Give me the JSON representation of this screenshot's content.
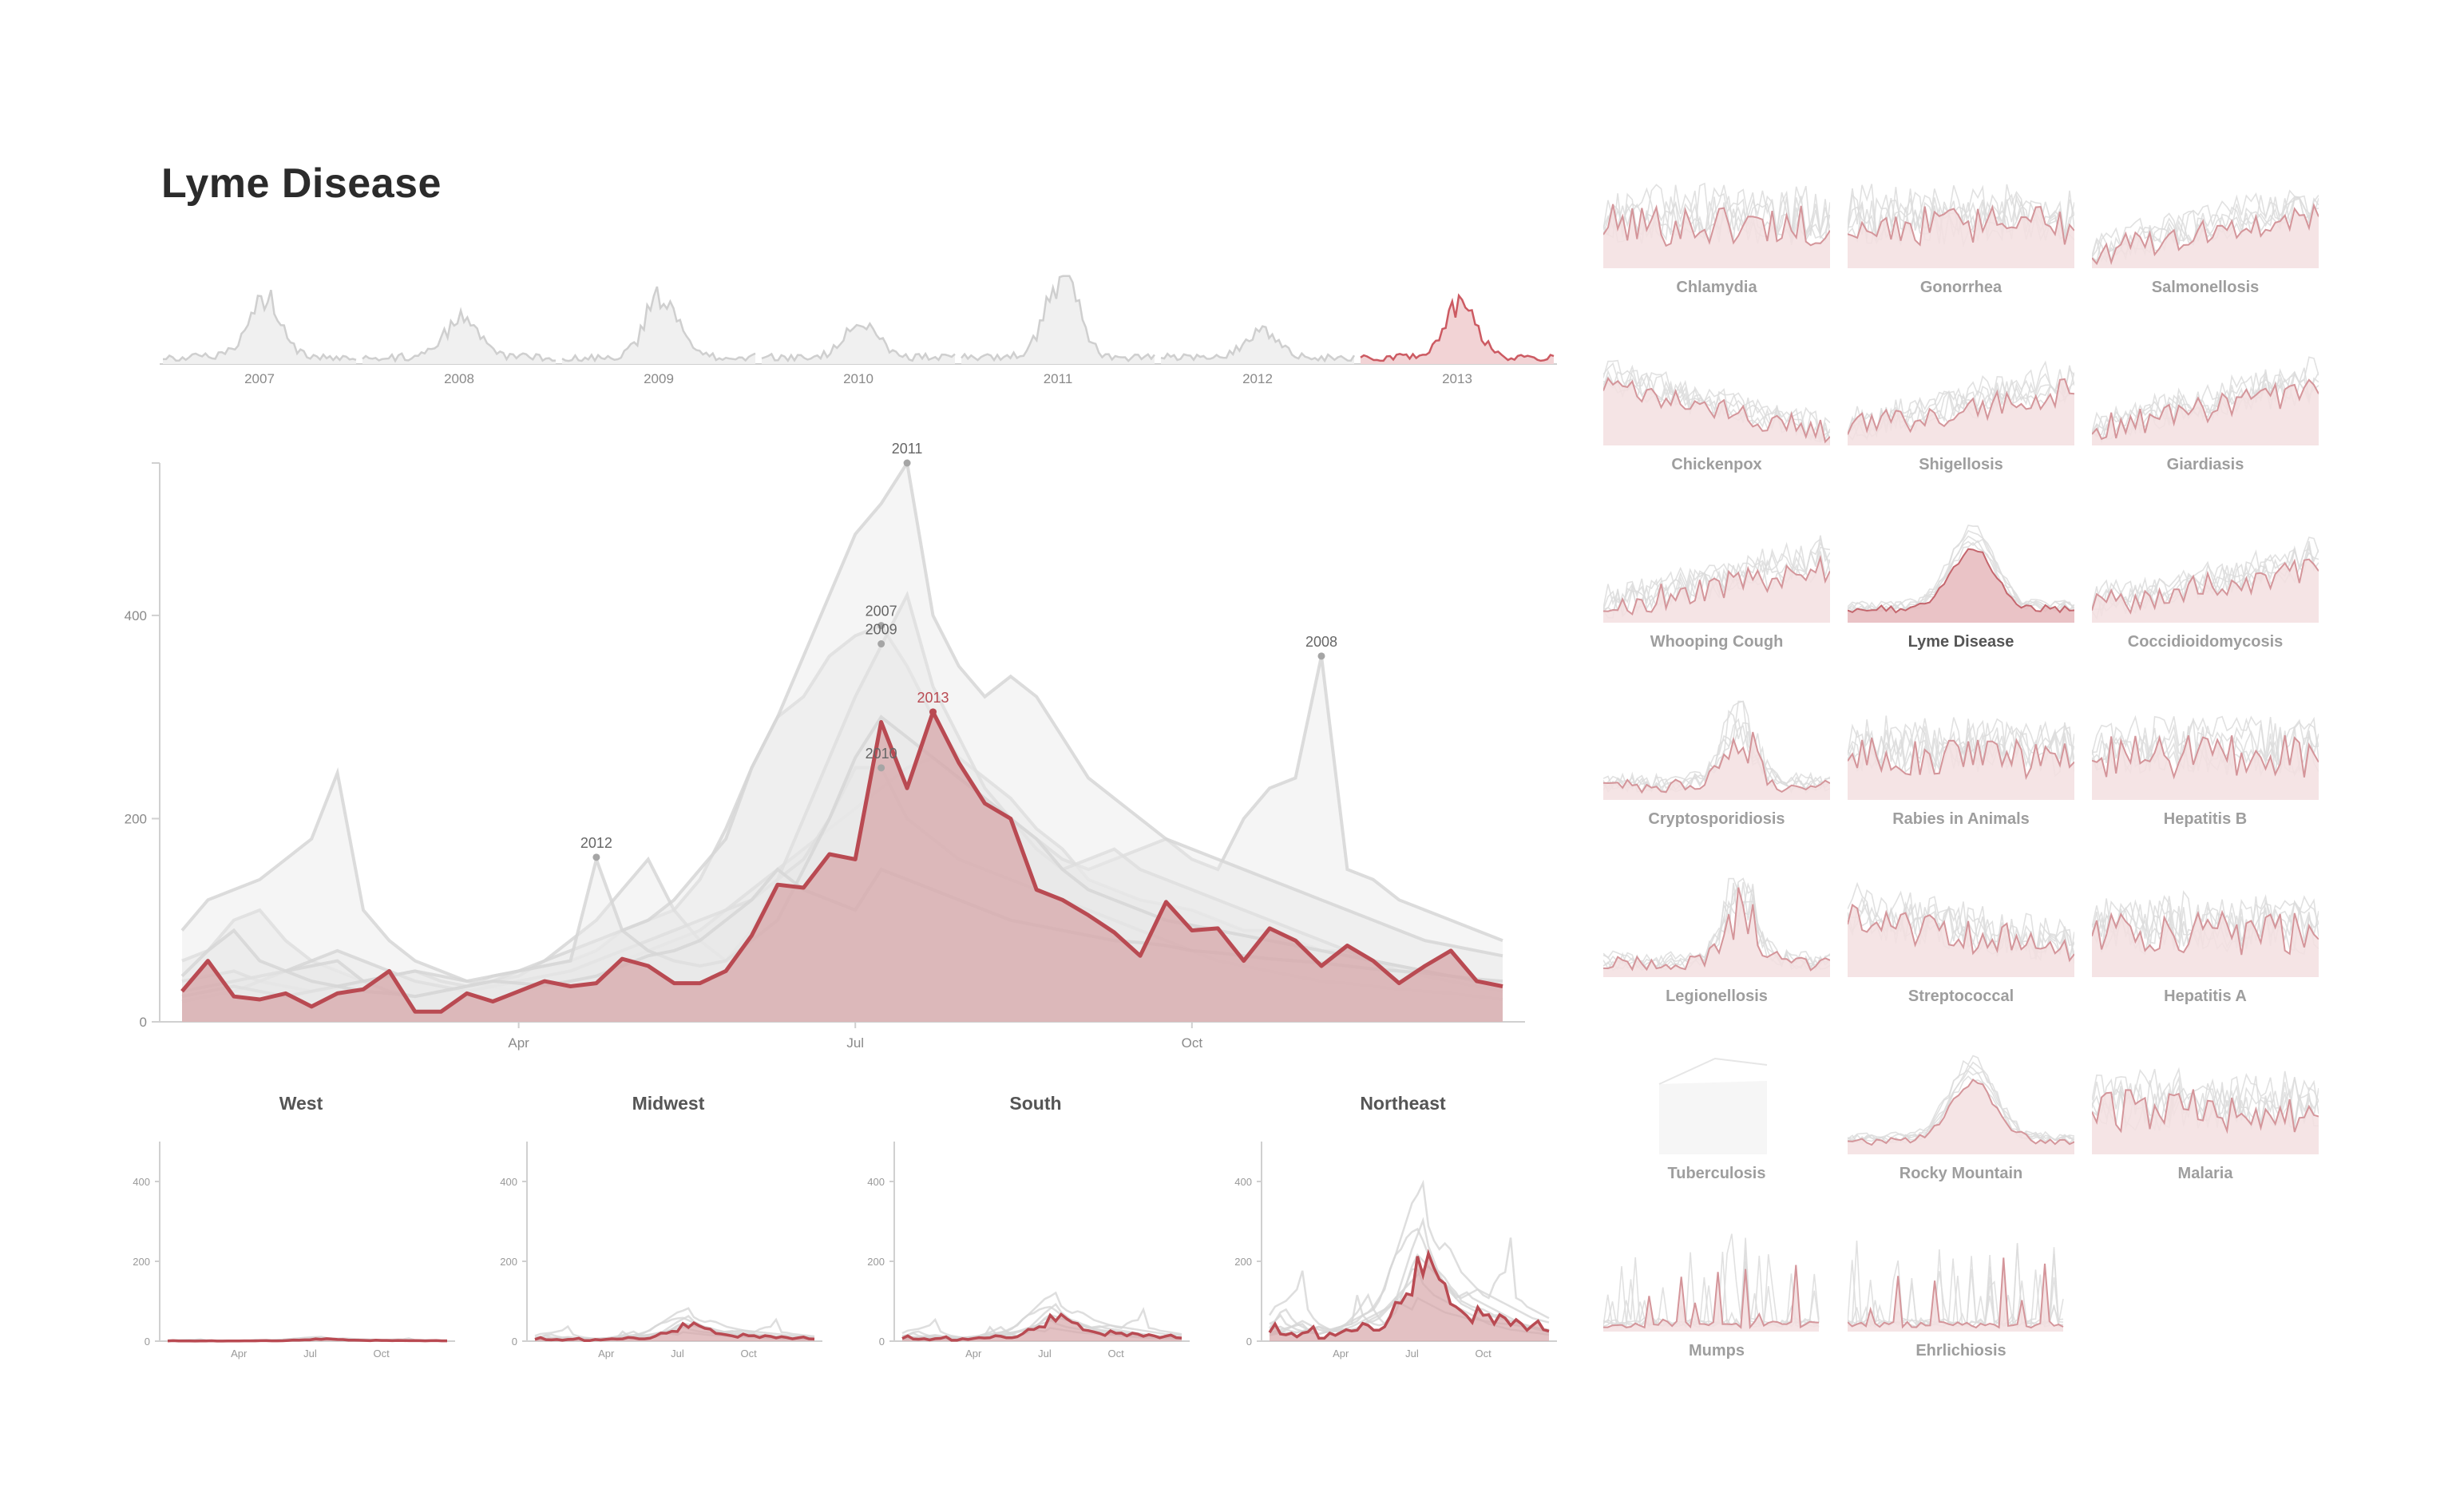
{
  "page": {
    "title": "Lyme Disease"
  },
  "colors": {
    "accent": "#b94a52",
    "accent_fill": "#d7a7aa",
    "ghost_line": "#d6d6d6",
    "ghost_fill": "#ededed",
    "small_label": "#9e9e9e",
    "small_label_active": "#555555"
  },
  "chart_data": [
    {
      "id": "timeline",
      "type": "area",
      "title": "",
      "xlabel": "",
      "ylabel": "",
      "highlight_year": "2013",
      "categories": [
        "2007",
        "2008",
        "2009",
        "2010",
        "2011",
        "2012",
        "2013"
      ],
      "peaks": [
        240,
        175,
        250,
        145,
        350,
        110,
        210
      ]
    },
    {
      "id": "main",
      "type": "line",
      "title": "",
      "xlabel": "",
      "ylabel": "",
      "ylim": [
        0,
        550
      ],
      "y_ticks": [
        0,
        200,
        400
      ],
      "x_ticks": [
        "Apr",
        "Jul",
        "Oct"
      ],
      "x_tick_weeks": [
        13,
        26,
        39
      ],
      "weeks": 52,
      "grid": false,
      "highlight": {
        "name": "2013",
        "values": [
          30,
          60,
          25,
          22,
          28,
          15,
          28,
          32,
          50,
          10,
          10,
          28,
          20,
          30,
          40,
          35,
          38,
          62,
          55,
          38,
          38,
          50,
          85,
          135,
          132,
          165,
          160,
          295,
          230,
          305,
          255,
          215,
          200,
          130,
          120,
          105,
          88,
          65,
          118,
          90,
          92,
          60,
          92,
          80,
          55,
          75,
          60,
          38,
          55,
          70,
          40,
          35
        ]
      },
      "series": [
        {
          "name": "2007",
          "values": [
            60,
            70,
            100,
            110,
            80,
            60,
            50,
            40,
            30,
            25,
            30,
            35,
            45,
            50,
            55,
            60,
            70,
            90,
            100,
            110,
            140,
            190,
            250,
            300,
            320,
            360,
            380,
            390,
            350,
            300,
            260,
            240,
            220,
            190,
            170,
            140,
            130,
            120,
            115,
            110,
            100,
            90,
            90,
            80,
            70,
            70,
            60,
            55,
            50,
            45,
            40,
            35
          ]
        },
        {
          "name": "2008",
          "values": [
            90,
            120,
            130,
            140,
            160,
            180,
            245,
            110,
            80,
            60,
            50,
            40,
            35,
            30,
            35,
            40,
            45,
            60,
            70,
            80,
            90,
            110,
            130,
            150,
            170,
            190,
            210,
            230,
            250,
            260,
            240,
            220,
            200,
            180,
            160,
            150,
            160,
            170,
            180,
            160,
            150,
            200,
            230,
            240,
            360,
            150,
            140,
            120,
            110,
            100,
            90,
            80
          ]
        },
        {
          "name": "2009",
          "values": [
            40,
            45,
            50,
            40,
            35,
            30,
            35,
            40,
            45,
            50,
            40,
            35,
            40,
            45,
            60,
            80,
            100,
            130,
            160,
            110,
            80,
            60,
            90,
            140,
            200,
            260,
            320,
            370,
            420,
            330,
            280,
            230,
            200,
            170,
            150,
            160,
            170,
            150,
            140,
            130,
            120,
            110,
            100,
            90,
            80,
            70,
            60,
            50,
            45,
            40,
            35,
            30
          ]
        },
        {
          "name": "2010",
          "values": [
            20,
            25,
            30,
            40,
            50,
            60,
            70,
            60,
            50,
            40,
            35,
            30,
            35,
            40,
            45,
            50,
            60,
            70,
            80,
            90,
            100,
            110,
            120,
            140,
            160,
            200,
            250,
            250,
            200,
            180,
            160,
            150,
            140,
            130,
            120,
            110,
            100,
            90,
            80,
            70,
            60,
            55,
            50,
            45,
            40,
            38,
            35,
            32,
            30,
            28,
            25,
            22
          ]
        },
        {
          "name": "2011",
          "values": [
            30,
            35,
            40,
            45,
            50,
            55,
            60,
            40,
            30,
            25,
            30,
            35,
            40,
            50,
            60,
            70,
            80,
            90,
            100,
            120,
            150,
            180,
            250,
            300,
            360,
            420,
            480,
            510,
            550,
            400,
            350,
            320,
            340,
            320,
            280,
            240,
            220,
            200,
            180,
            170,
            160,
            150,
            140,
            130,
            120,
            110,
            100,
            90,
            80,
            75,
            70,
            65
          ]
        },
        {
          "name": "2012",
          "values": [
            25,
            30,
            35,
            30,
            25,
            30,
            35,
            40,
            45,
            50,
            45,
            40,
            45,
            50,
            55,
            60,
            160,
            90,
            70,
            60,
            55,
            60,
            80,
            100,
            150,
            200,
            260,
            300,
            280,
            260,
            240,
            220,
            200,
            180,
            150,
            130,
            120,
            110,
            100,
            95,
            90,
            85,
            80,
            75,
            70,
            65,
            60,
            55,
            50,
            45,
            40,
            35
          ]
        },
        {
          "name": "",
          "values": [
            45,
            70,
            90,
            60,
            50,
            40,
            35,
            30,
            28,
            25,
            30,
            35,
            40,
            38,
            36,
            40,
            45,
            55,
            65,
            70,
            80,
            100,
            120,
            150,
            130,
            120,
            110,
            150,
            140,
            130,
            120,
            110,
            100,
            95,
            90,
            85,
            80,
            78,
            75,
            70,
            68,
            65,
            62,
            60,
            58,
            55,
            52,
            50,
            48,
            45,
            42,
            40
          ]
        }
      ],
      "annotations": [
        {
          "label": "2011",
          "week": 28,
          "value": 550
        },
        {
          "label": "2007",
          "week": 27,
          "value": 390
        },
        {
          "label": "2009",
          "week": 27,
          "value": 372
        },
        {
          "label": "2013",
          "week": 29,
          "value": 305,
          "highlight": true
        },
        {
          "label": "2010",
          "week": 27,
          "value": 250
        },
        {
          "label": "2008",
          "week": 44,
          "value": 360
        },
        {
          "label": "2012",
          "week": 16,
          "value": 162
        }
      ]
    },
    {
      "id": "regions",
      "type": "line",
      "ylim": [
        0,
        500
      ],
      "y_ticks": [
        0,
        200,
        400
      ],
      "x_ticks": [
        "Apr",
        "Jul",
        "Oct"
      ],
      "regions": [
        {
          "name": "West",
          "scale": 0.02
        },
        {
          "name": "Midwest",
          "scale": 0.15
        },
        {
          "name": "South",
          "scale": 0.22
        },
        {
          "name": "Northeast",
          "scale": 0.72
        }
      ]
    },
    {
      "id": "small-multiples",
      "type": "area",
      "diseases": [
        {
          "name": "Chlamydia",
          "active": false
        },
        {
          "name": "Gonorrhea",
          "active": false
        },
        {
          "name": "Salmonellosis",
          "active": false
        },
        {
          "name": "Chickenpox",
          "active": false
        },
        {
          "name": "Shigellosis",
          "active": false
        },
        {
          "name": "Giardiasis",
          "active": false
        },
        {
          "name": "Whooping Cough",
          "active": false
        },
        {
          "name": "Lyme Disease",
          "active": true
        },
        {
          "name": "Coccidioidomycosis",
          "active": false
        },
        {
          "name": "Cryptosporidiosis",
          "active": false
        },
        {
          "name": "Rabies in Animals",
          "active": false
        },
        {
          "name": "Hepatitis B",
          "active": false
        },
        {
          "name": "Legionellosis",
          "active": false
        },
        {
          "name": "Streptococcal",
          "active": false
        },
        {
          "name": "Hepatitis A",
          "active": false
        },
        {
          "name": "Tuberculosis",
          "active": false
        },
        {
          "name": "Rocky Mountain",
          "active": false
        },
        {
          "name": "Malaria",
          "active": false
        },
        {
          "name": "Mumps",
          "active": false
        },
        {
          "name": "Ehrlichiosis",
          "active": false
        }
      ]
    }
  ]
}
